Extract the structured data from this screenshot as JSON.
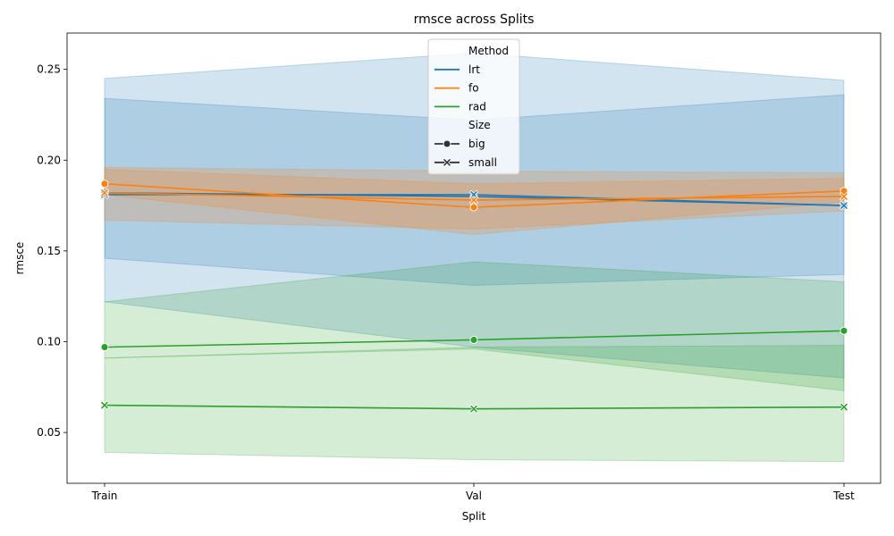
{
  "chart_data": {
    "type": "line",
    "title": "rmsce across Splits",
    "xlabel": "Split",
    "ylabel": "rmsce",
    "categories": [
      "Train",
      "Val",
      "Test"
    ],
    "ylim": [
      0.022,
      0.27
    ],
    "yticks": [
      0.05,
      0.1,
      0.15,
      0.2,
      0.25
    ],
    "ytick_labels": [
      "0.05",
      "0.10",
      "0.15",
      "0.20",
      "0.25"
    ],
    "grid": false,
    "legend_position": "top-center",
    "legend": {
      "hue_title": "Method",
      "hue_entries": [
        {
          "label": "lrt",
          "color": "#1f77b4"
        },
        {
          "label": "fo",
          "color": "#ff7f0e"
        },
        {
          "label": "rad",
          "color": "#2ca02c"
        }
      ],
      "style_title": "Size",
      "style_entries": [
        {
          "label": "big",
          "marker": "circle"
        },
        {
          "label": "small",
          "marker": "x"
        }
      ]
    },
    "series": [
      {
        "method": "lrt",
        "size": "big",
        "color": "#1f77b4",
        "marker": "circle",
        "values": [
          0.182,
          0.18,
          0.175
        ],
        "ci_low": [
          0.146,
          0.131,
          0.137
        ],
        "ci_high": [
          0.234,
          0.222,
          0.236
        ]
      },
      {
        "method": "lrt",
        "size": "small",
        "color": "#1f77b4",
        "marker": "x",
        "values": [
          0.181,
          0.181,
          0.175
        ],
        "ci_low": [
          0.122,
          0.097,
          0.08
        ],
        "ci_high": [
          0.245,
          0.259,
          0.244
        ]
      },
      {
        "method": "fo",
        "size": "big",
        "color": "#ff7f0e",
        "marker": "circle",
        "values": [
          0.187,
          0.174,
          0.183
        ],
        "ci_low": [
          0.181,
          0.159,
          0.177
        ],
        "ci_high": [
          0.195,
          0.187,
          0.19
        ]
      },
      {
        "method": "fo",
        "size": "small",
        "color": "#ff7f0e",
        "marker": "x",
        "values": [
          0.182,
          0.178,
          0.18
        ],
        "ci_low": [
          0.167,
          0.162,
          0.172
        ],
        "ci_high": [
          0.196,
          0.194,
          0.193
        ]
      },
      {
        "method": "rad",
        "size": "big",
        "color": "#2ca02c",
        "marker": "circle",
        "values": [
          0.097,
          0.101,
          0.106
        ],
        "ci_low": [
          0.091,
          0.096,
          0.073
        ],
        "ci_high": [
          0.122,
          0.144,
          0.133
        ]
      },
      {
        "method": "rad",
        "size": "small",
        "color": "#2ca02c",
        "marker": "x",
        "values": [
          0.065,
          0.063,
          0.064
        ],
        "ci_low": [
          0.039,
          0.035,
          0.034
        ],
        "ci_high": [
          0.091,
          0.097,
          0.098
        ]
      }
    ]
  }
}
